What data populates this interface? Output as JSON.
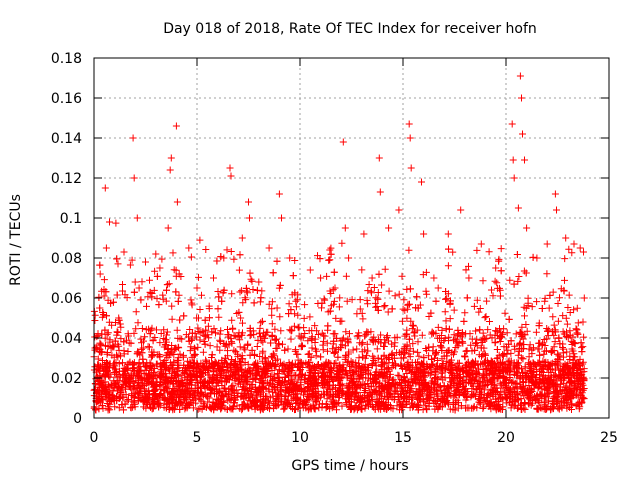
{
  "chart_data": {
    "type": "scatter",
    "title": "Day 018 of 2018, Rate Of TEC Index for receiver hofn",
    "xlabel": "GPS time / hours",
    "ylabel": "ROTI / TECUs",
    "xlim": [
      0,
      25
    ],
    "ylim": [
      0,
      0.18
    ],
    "grid": true,
    "marker": "+",
    "marker_color": "#ff0000",
    "x_ticks": [
      0,
      5,
      10,
      15,
      20,
      25
    ],
    "x_tick_labels": [
      "0",
      "5",
      "10",
      "15",
      "20",
      "25"
    ],
    "y_ticks": [
      0,
      0.02,
      0.04,
      0.06,
      0.08,
      0.1,
      0.12,
      0.14,
      0.16,
      0.18
    ],
    "y_tick_labels": [
      "0",
      "0.02",
      "0.04",
      "0.06",
      "0.08",
      "0.1",
      "0.12",
      "0.14",
      "0.16",
      "0.18"
    ],
    "data_range_hours": [
      0,
      23.8
    ],
    "series": [
      {
        "name": "ROTI",
        "points": [
          [
            0.05,
            0.035
          ],
          [
            0.3,
            0.072
          ],
          [
            0.55,
            0.115
          ],
          [
            0.6,
            0.085
          ],
          [
            0.75,
            0.098
          ],
          [
            1.2,
            0.05
          ],
          [
            1.9,
            0.14
          ],
          [
            1.95,
            0.12
          ],
          [
            2.1,
            0.1
          ],
          [
            2.5,
            0.078
          ],
          [
            3.0,
            0.082
          ],
          [
            3.2,
            0.075
          ],
          [
            3.6,
            0.095
          ],
          [
            3.7,
            0.124
          ],
          [
            3.75,
            0.13
          ],
          [
            4.0,
            0.146
          ],
          [
            4.05,
            0.108
          ],
          [
            4.6,
            0.085
          ],
          [
            5.0,
            0.065
          ],
          [
            5.8,
            0.07
          ],
          [
            6.3,
            0.08
          ],
          [
            6.6,
            0.125
          ],
          [
            6.65,
            0.121
          ],
          [
            7.2,
            0.09
          ],
          [
            7.5,
            0.108
          ],
          [
            7.55,
            0.1
          ],
          [
            8.0,
            0.068
          ],
          [
            8.5,
            0.085
          ],
          [
            9.0,
            0.112
          ],
          [
            9.1,
            0.1
          ],
          [
            9.5,
            0.08
          ],
          [
            10.5,
            0.074
          ],
          [
            11.0,
            0.07
          ],
          [
            11.7,
            0.065
          ],
          [
            12.1,
            0.138
          ],
          [
            12.2,
            0.095
          ],
          [
            13.1,
            0.092
          ],
          [
            13.5,
            0.07
          ],
          [
            13.85,
            0.13
          ],
          [
            13.9,
            0.113
          ],
          [
            14.3,
            0.095
          ],
          [
            14.8,
            0.104
          ],
          [
            15.3,
            0.147
          ],
          [
            15.35,
            0.14
          ],
          [
            15.4,
            0.125
          ],
          [
            15.9,
            0.118
          ],
          [
            16.0,
            0.092
          ],
          [
            16.5,
            0.07
          ],
          [
            17.2,
            0.092
          ],
          [
            17.8,
            0.104
          ],
          [
            18.2,
            0.07
          ],
          [
            18.8,
            0.087
          ],
          [
            19.5,
            0.075
          ],
          [
            20.3,
            0.147
          ],
          [
            20.35,
            0.129
          ],
          [
            20.4,
            0.12
          ],
          [
            20.6,
            0.105
          ],
          [
            20.7,
            0.171
          ],
          [
            20.75,
            0.16
          ],
          [
            20.8,
            0.142
          ],
          [
            20.9,
            0.129
          ],
          [
            21.0,
            0.095
          ],
          [
            21.5,
            0.08
          ],
          [
            22.0,
            0.087
          ],
          [
            22.4,
            0.112
          ],
          [
            22.45,
            0.104
          ],
          [
            22.9,
            0.09
          ],
          [
            23.3,
            0.087
          ],
          [
            23.6,
            0.085
          ],
          [
            23.8,
            0.06
          ]
        ]
      }
    ]
  }
}
